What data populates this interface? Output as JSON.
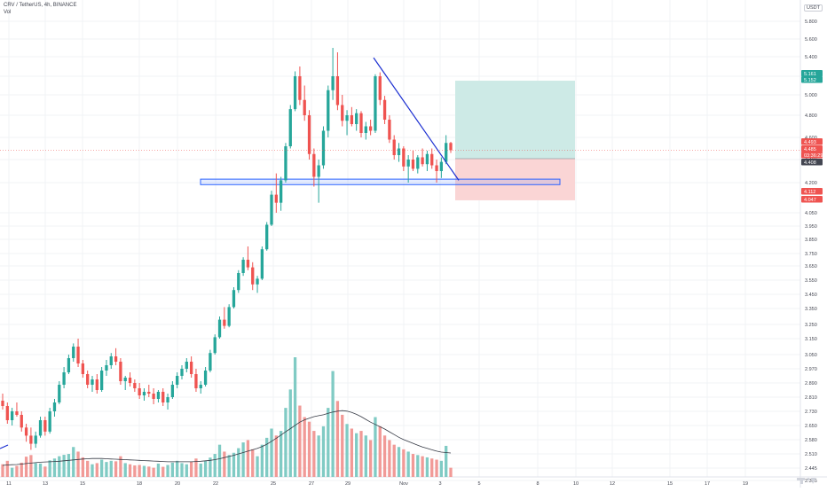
{
  "header": {
    "symbol_line": "CRV / TetherUS, 4h, BINANCE",
    "indicator": "Vol",
    "unit_label": "USDT"
  },
  "colors": {
    "up": "#26a69a",
    "down": "#ef5350",
    "vol_up": "#80cbc4",
    "vol_down": "#f19a97",
    "trendline": "#1c2fd1",
    "support_zone": "#2962ff",
    "target_zone": "#cdeae6",
    "stop_zone": "#fad5d5",
    "vol_ma": "#363a45",
    "grid": "#f1f3f6"
  },
  "chart_data": {
    "type": "candlestick",
    "title": "CRV / TetherUS, 4h, BINANCE",
    "y_axis_ticks": [
      "5.800",
      "5.600",
      "5.400",
      "5.200",
      "5.000",
      "4.800",
      "4.600",
      "4.400",
      "4.200",
      "4.050",
      "3.950",
      "3.850",
      "3.750",
      "3.650",
      "3.550",
      "3.450",
      "3.350",
      "3.250",
      "3.150",
      "3.050",
      "2.970",
      "2.890",
      "2.810",
      "2.730",
      "2.650",
      "2.580",
      "2.510",
      "2.445",
      "2.385"
    ],
    "x_axis_ticks": [
      "11",
      "13",
      "15",
      "18",
      "20",
      "22",
      "25",
      "27",
      "29",
      "Nov",
      "3",
      "5",
      "8",
      "10",
      "12",
      "15",
      "17",
      "19"
    ],
    "price_labels": [
      {
        "text": "5.161",
        "color": "#26a69a",
        "price": 5.161
      },
      {
        "text": "5.152",
        "color": "#26a69a",
        "price": 5.152
      },
      {
        "text": "4.493",
        "color": "#ef5350",
        "price": 4.493
      },
      {
        "text": "4.485",
        "color": "#ef5350",
        "price": 4.485
      },
      {
        "text": "03:36:29",
        "color": "#ef5350",
        "price": 4.485
      },
      {
        "text": "4.408",
        "color": "#434651",
        "price": 4.408
      },
      {
        "text": "4.112",
        "color": "#ef5350",
        "price": 4.112
      },
      {
        "text": "4.047",
        "color": "#ef5350",
        "price": 4.047
      }
    ],
    "last_price": 4.485,
    "long_position": {
      "entry": 4.408,
      "target": 5.152,
      "stop": 4.112
    },
    "support_zone": {
      "low": 4.19,
      "high": 4.23
    },
    "trendline": {
      "from_price": 5.39,
      "to_price": 4.22
    },
    "ohlc": [
      [
        2.79,
        2.83,
        2.74,
        2.76
      ],
      [
        2.76,
        2.78,
        2.66,
        2.68
      ],
      [
        2.68,
        2.75,
        2.65,
        2.73
      ],
      [
        2.73,
        2.78,
        2.7,
        2.71
      ],
      [
        2.71,
        2.73,
        2.62,
        2.64
      ],
      [
        2.64,
        2.66,
        2.57,
        2.6
      ],
      [
        2.6,
        2.64,
        2.53,
        2.56
      ],
      [
        2.56,
        2.62,
        2.54,
        2.6
      ],
      [
        2.6,
        2.7,
        2.59,
        2.68
      ],
      [
        2.68,
        2.7,
        2.6,
        2.62
      ],
      [
        2.62,
        2.75,
        2.61,
        2.73
      ],
      [
        2.73,
        2.8,
        2.7,
        2.78
      ],
      [
        2.78,
        2.9,
        2.77,
        2.88
      ],
      [
        2.88,
        2.98,
        2.86,
        2.95
      ],
      [
        2.95,
        3.05,
        2.94,
        3.03
      ],
      [
        3.03,
        3.12,
        3.01,
        3.1
      ],
      [
        3.1,
        3.15,
        2.98,
        3.0
      ],
      [
        3.0,
        3.02,
        2.92,
        2.94
      ],
      [
        2.94,
        2.96,
        2.86,
        2.88
      ],
      [
        2.88,
        2.93,
        2.84,
        2.91
      ],
      [
        2.91,
        2.94,
        2.83,
        2.85
      ],
      [
        2.85,
        2.98,
        2.84,
        2.96
      ],
      [
        2.96,
        3.02,
        2.93,
        2.99
      ],
      [
        2.99,
        3.06,
        2.97,
        3.04
      ],
      [
        3.04,
        3.09,
        2.99,
        3.01
      ],
      [
        3.01,
        3.03,
        2.88,
        2.9
      ],
      [
        2.9,
        2.93,
        2.85,
        2.92
      ],
      [
        2.92,
        2.95,
        2.87,
        2.89
      ],
      [
        2.89,
        2.91,
        2.84,
        2.86
      ],
      [
        2.86,
        2.89,
        2.8,
        2.82
      ],
      [
        2.82,
        2.86,
        2.79,
        2.84
      ],
      [
        2.84,
        2.88,
        2.81,
        2.83
      ],
      [
        2.83,
        2.86,
        2.77,
        2.8
      ],
      [
        2.8,
        2.85,
        2.78,
        2.84
      ],
      [
        2.84,
        2.86,
        2.76,
        2.78
      ],
      [
        2.78,
        2.83,
        2.74,
        2.81
      ],
      [
        2.81,
        2.9,
        2.8,
        2.88
      ],
      [
        2.88,
        2.95,
        2.86,
        2.93
      ],
      [
        2.93,
        2.99,
        2.91,
        2.97
      ],
      [
        2.97,
        3.03,
        2.95,
        3.01
      ],
      [
        3.01,
        3.04,
        2.92,
        2.94
      ],
      [
        2.94,
        2.97,
        2.84,
        2.86
      ],
      [
        2.86,
        2.9,
        2.83,
        2.88
      ],
      [
        2.88,
        2.98,
        2.87,
        2.96
      ],
      [
        2.96,
        3.08,
        2.95,
        3.06
      ],
      [
        3.06,
        3.18,
        3.05,
        3.16
      ],
      [
        3.16,
        3.3,
        3.15,
        3.28
      ],
      [
        3.28,
        3.36,
        3.22,
        3.24
      ],
      [
        3.24,
        3.38,
        3.23,
        3.36
      ],
      [
        3.36,
        3.5,
        3.35,
        3.48
      ],
      [
        3.48,
        3.62,
        3.46,
        3.6
      ],
      [
        3.6,
        3.72,
        3.58,
        3.7
      ],
      [
        3.7,
        3.8,
        3.62,
        3.64
      ],
      [
        3.64,
        3.68,
        3.48,
        3.52
      ],
      [
        3.52,
        3.58,
        3.46,
        3.56
      ],
      [
        3.56,
        3.8,
        3.55,
        3.78
      ],
      [
        3.78,
        3.98,
        3.77,
        3.96
      ],
      [
        3.96,
        4.16,
        3.95,
        4.14
      ],
      [
        4.14,
        4.28,
        4.05,
        4.1
      ],
      [
        4.1,
        4.25,
        4.06,
        4.22
      ],
      [
        4.22,
        4.55,
        4.2,
        4.52
      ],
      [
        4.52,
        4.9,
        4.5,
        4.86
      ],
      [
        4.86,
        5.25,
        4.84,
        5.2
      ],
      [
        5.2,
        5.3,
        4.9,
        4.95
      ],
      [
        4.95,
        5.1,
        4.75,
        4.8
      ],
      [
        4.8,
        4.85,
        4.4,
        4.45
      ],
      [
        4.45,
        4.5,
        4.18,
        4.25
      ],
      [
        4.25,
        4.4,
        4.1,
        4.35
      ],
      [
        4.35,
        4.7,
        4.32,
        4.66
      ],
      [
        4.66,
        5.1,
        4.6,
        5.05
      ],
      [
        5.05,
        5.5,
        4.95,
        5.2
      ],
      [
        5.2,
        5.45,
        4.85,
        4.9
      ],
      [
        4.9,
        5.0,
        4.7,
        4.75
      ],
      [
        4.75,
        4.85,
        4.62,
        4.8
      ],
      [
        4.8,
        4.88,
        4.7,
        4.72
      ],
      [
        4.72,
        4.86,
        4.66,
        4.82
      ],
      [
        4.82,
        4.84,
        4.6,
        4.64
      ],
      [
        4.64,
        4.74,
        4.58,
        4.7
      ],
      [
        4.7,
        4.76,
        4.62,
        4.66
      ],
      [
        4.66,
        5.22,
        4.64,
        5.2
      ],
      [
        5.2,
        5.24,
        4.9,
        4.95
      ],
      [
        4.95,
        4.99,
        4.72,
        4.76
      ],
      [
        4.76,
        4.8,
        4.55,
        4.58
      ],
      [
        4.58,
        4.62,
        4.4,
        4.44
      ],
      [
        4.44,
        4.55,
        4.38,
        4.5
      ],
      [
        4.5,
        4.52,
        4.3,
        4.34
      ],
      [
        4.34,
        4.44,
        4.2,
        4.4
      ],
      [
        4.4,
        4.48,
        4.3,
        4.32
      ],
      [
        4.32,
        4.44,
        4.28,
        4.42
      ],
      [
        4.42,
        4.5,
        4.34,
        4.36
      ],
      [
        4.36,
        4.48,
        4.3,
        4.45
      ],
      [
        4.45,
        4.5,
        4.32,
        4.35
      ],
      [
        4.35,
        4.4,
        4.2,
        4.3
      ],
      [
        4.3,
        4.42,
        4.24,
        4.38
      ],
      [
        4.38,
        4.62,
        4.36,
        4.55
      ],
      [
        4.55,
        4.56,
        4.46,
        4.485
      ]
    ],
    "volume": [
      55,
      70,
      40,
      48,
      62,
      88,
      95,
      60,
      58,
      45,
      72,
      80,
      90,
      96,
      100,
      130,
      110,
      85,
      70,
      55,
      60,
      75,
      65,
      70,
      68,
      90,
      60,
      55,
      50,
      52,
      48,
      45,
      40,
      58,
      44,
      52,
      62,
      70,
      60,
      55,
      66,
      80,
      58,
      70,
      84,
      100,
      140,
      110,
      95,
      105,
      125,
      150,
      160,
      120,
      90,
      140,
      170,
      210,
      180,
      200,
      300,
      380,
      520,
      310,
      260,
      240,
      200,
      180,
      220,
      300,
      460,
      330,
      270,
      230,
      210,
      190,
      200,
      180,
      160,
      260,
      220,
      180,
      160,
      140,
      130,
      120,
      110,
      100,
      95,
      90,
      85,
      80,
      75,
      70,
      135,
      40
    ],
    "volume_ma": [
      50,
      52,
      53,
      54,
      56,
      58,
      60,
      62,
      64,
      65,
      66,
      67,
      68,
      70,
      72,
      74,
      76,
      78,
      79,
      80,
      80,
      80,
      79,
      78,
      77,
      76,
      75,
      74,
      73,
      72,
      71,
      70,
      69,
      68,
      67,
      66,
      66,
      66,
      66,
      66,
      66,
      67,
      68,
      70,
      72,
      75,
      79,
      84,
      89,
      94,
      100,
      106,
      112,
      118,
      124,
      132,
      142,
      155,
      168,
      182,
      196,
      210,
      224,
      238,
      248,
      255,
      262,
      266,
      270,
      276,
      282,
      286,
      288,
      286,
      280,
      272,
      262,
      250,
      238,
      228,
      218,
      208,
      196,
      184,
      172,
      162,
      154,
      146,
      138,
      130,
      124,
      118,
      112,
      108,
      106,
      104
    ]
  }
}
